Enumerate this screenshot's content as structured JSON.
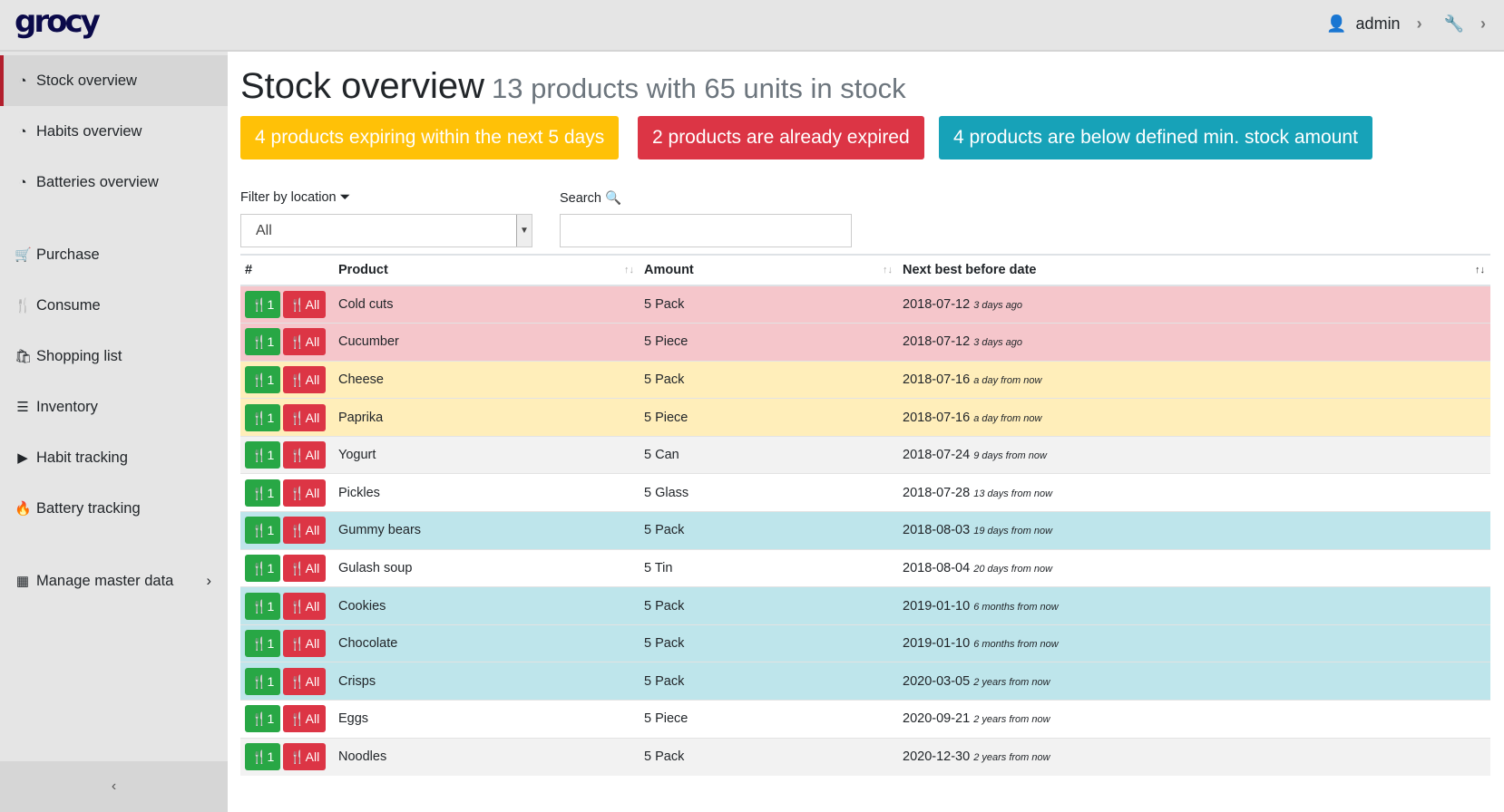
{
  "app": {
    "logo": "grocy",
    "user": "admin"
  },
  "sidebar": {
    "items": [
      {
        "label": "Stock overview",
        "icon": "tachometer-icon",
        "glyph": "◔",
        "active": true
      },
      {
        "label": "Habits overview",
        "icon": "tachometer-icon",
        "glyph": "◔"
      },
      {
        "label": "Batteries overview",
        "icon": "tachometer-icon",
        "glyph": "◔"
      },
      {
        "label": "Purchase",
        "icon": "cart-icon",
        "glyph": "🛒"
      },
      {
        "label": "Consume",
        "icon": "cutlery-icon",
        "glyph": "🍴"
      },
      {
        "label": "Shopping list",
        "icon": "shopping-bag-icon",
        "glyph": "🛍"
      },
      {
        "label": "Inventory",
        "icon": "list-icon",
        "glyph": "☰"
      },
      {
        "label": "Habit tracking",
        "icon": "play-icon",
        "glyph": "▶"
      },
      {
        "label": "Battery tracking",
        "icon": "fire-icon",
        "glyph": "🔥"
      },
      {
        "label": "Manage master data",
        "icon": "table-icon",
        "glyph": "▦"
      }
    ]
  },
  "page": {
    "title": "Stock overview",
    "subtitle": "13 products with 65 units in stock"
  },
  "alerts": [
    {
      "text": "4 products expiring within the next 5 days",
      "color": "#ffc107"
    },
    {
      "text": "2 products are already expired",
      "color": "#dc3545"
    },
    {
      "text": "4 products are below defined min. stock amount",
      "color": "#17a2b8"
    }
  ],
  "filter": {
    "label": "Filter by location",
    "value": "All"
  },
  "search": {
    "label": "Search",
    "value": ""
  },
  "table": {
    "headers": [
      "#",
      "Product",
      "Amount",
      "Next best before date"
    ],
    "consume_one": "1",
    "consume_all": "All",
    "rows": [
      {
        "product": "Cold cuts",
        "amount": "5 Pack",
        "date": "2018-07-12",
        "rel": "3 days ago",
        "status": "danger"
      },
      {
        "product": "Cucumber",
        "amount": "5 Piece",
        "date": "2018-07-12",
        "rel": "3 days ago",
        "status": "danger"
      },
      {
        "product": "Cheese",
        "amount": "5 Pack",
        "date": "2018-07-16",
        "rel": "a day from now",
        "status": "warning"
      },
      {
        "product": "Paprika",
        "amount": "5 Piece",
        "date": "2018-07-16",
        "rel": "a day from now",
        "status": "warning"
      },
      {
        "product": "Yogurt",
        "amount": "5 Can",
        "date": "2018-07-24",
        "rel": "9 days from now",
        "status": "striped"
      },
      {
        "product": "Pickles",
        "amount": "5 Glass",
        "date": "2018-07-28",
        "rel": "13 days from now",
        "status": "none"
      },
      {
        "product": "Gummy bears",
        "amount": "5 Pack",
        "date": "2018-08-03",
        "rel": "19 days from now",
        "status": "info"
      },
      {
        "product": "Gulash soup",
        "amount": "5 Tin",
        "date": "2018-08-04",
        "rel": "20 days from now",
        "status": "none"
      },
      {
        "product": "Cookies",
        "amount": "5 Pack",
        "date": "2019-01-10",
        "rel": "6 months from now",
        "status": "info"
      },
      {
        "product": "Chocolate",
        "amount": "5 Pack",
        "date": "2019-01-10",
        "rel": "6 months from now",
        "status": "info"
      },
      {
        "product": "Crisps",
        "amount": "5 Pack",
        "date": "2020-03-05",
        "rel": "2 years from now",
        "status": "info"
      },
      {
        "product": "Eggs",
        "amount": "5 Piece",
        "date": "2020-09-21",
        "rel": "2 years from now",
        "status": "none"
      },
      {
        "product": "Noodles",
        "amount": "5 Pack",
        "date": "2020-12-30",
        "rel": "2 years from now",
        "status": "striped"
      }
    ]
  },
  "status_colors": {
    "danger": "#f5c6cb",
    "warning": "#ffeeba",
    "info": "#bee5eb",
    "striped": "#f2f2f2",
    "none": "#ffffff"
  }
}
